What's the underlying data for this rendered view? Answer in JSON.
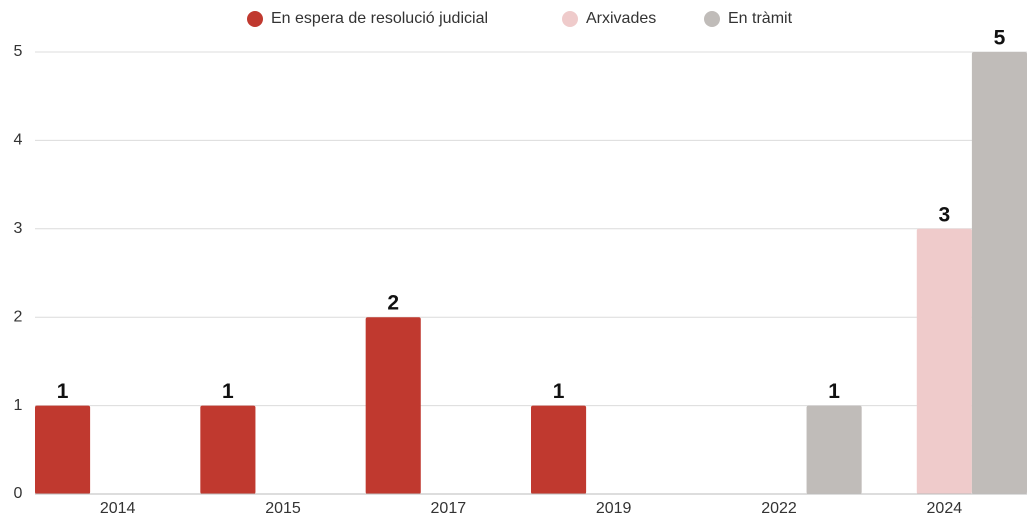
{
  "chart_data": {
    "type": "bar",
    "categories": [
      "2014",
      "2015",
      "2017",
      "2019",
      "2022",
      "2024"
    ],
    "series": [
      {
        "name": "En espera de resolució judicial",
        "color": "#c0392f",
        "values": [
          1,
          1,
          2,
          1,
          null,
          null
        ]
      },
      {
        "name": "Arxivades",
        "color": "#efcbcb",
        "values": [
          null,
          null,
          null,
          null,
          null,
          3
        ]
      },
      {
        "name": "En tràmit",
        "color": "#c0bcb9",
        "values": [
          null,
          null,
          null,
          null,
          1,
          5
        ]
      }
    ],
    "ylim": [
      0,
      5
    ],
    "yticks": [
      0,
      1,
      2,
      3,
      4,
      5
    ],
    "grid": true,
    "legend": "top"
  }
}
